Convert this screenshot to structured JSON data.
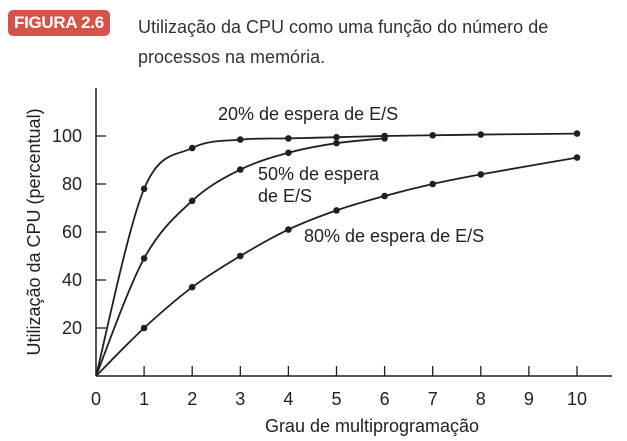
{
  "figure": {
    "label": "FIGURA 2.6",
    "caption": "Utilização da CPU como uma função do número de processos na memória.",
    "accent_color": "#d4544a"
  },
  "chart_data": {
    "type": "line",
    "title": "",
    "xlabel": "Grau de multiprogramação",
    "ylabel": "Utilização da CPU (percentual)",
    "xlim": [
      0,
      10.5
    ],
    "ylim": [
      0,
      120
    ],
    "xticks": [
      0,
      1,
      2,
      3,
      4,
      5,
      6,
      7,
      8,
      9,
      10
    ],
    "yticks": [
      20,
      40,
      60,
      80,
      100
    ],
    "grid": false,
    "series": [
      {
        "name": "20% de espera de E/S",
        "x": [
          0,
          1,
          2,
          3,
          4,
          5,
          6,
          7,
          8,
          10
        ],
        "values": [
          0,
          78,
          95,
          98.5,
          99,
          99.5,
          100,
          100.3,
          100.6,
          101
        ]
      },
      {
        "name": "50% de espera de E/S",
        "x": [
          0,
          1,
          2,
          3,
          4,
          5,
          6
        ],
        "values": [
          0,
          49,
          73,
          86,
          93,
          97,
          99
        ]
      },
      {
        "name": "80% de espera de E/S",
        "x": [
          0,
          1,
          2,
          3,
          4,
          5,
          6,
          7,
          8,
          10
        ],
        "values": [
          0,
          20,
          37,
          50,
          61,
          69,
          75,
          80,
          84,
          91
        ]
      }
    ]
  }
}
